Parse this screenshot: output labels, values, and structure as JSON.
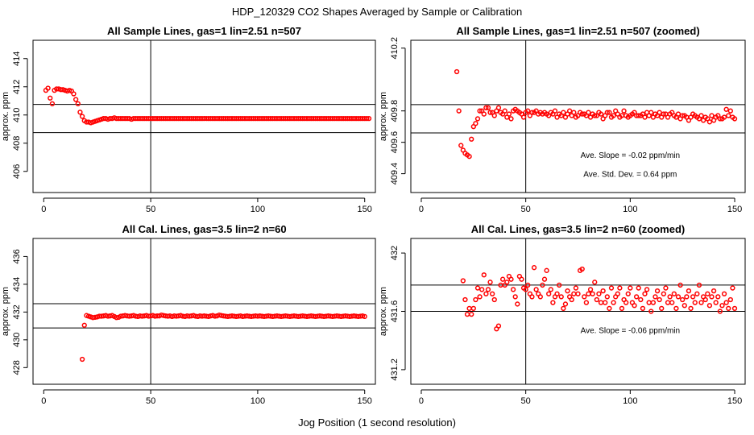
{
  "figure": {
    "title": "HDP_120329  CO2 Shapes Averaged by Sample or Calibration",
    "xlabel": "Jog Position (1 second resolution)"
  },
  "colors": {
    "points": "#ff0000",
    "axes": "#000000",
    "background": "#ffffff"
  },
  "chart_data": [
    {
      "type": "scatter",
      "title": "All Sample Lines, gas=1 lin=2.51 n=507",
      "ylabel": "approx. ppm",
      "xlim": [
        -5,
        155
      ],
      "ylim": [
        404.5,
        415.3
      ],
      "xticks": [
        0,
        50,
        100,
        150
      ],
      "yticks": [
        406,
        408,
        410,
        412,
        414
      ],
      "hlines": [
        410.75,
        408.75
      ],
      "vline": 50,
      "annotations": [],
      "series": [
        {
          "x_start": 1,
          "x_step": 1,
          "y": [
            411.75,
            411.9,
            411.2,
            410.8,
            411.75,
            411.85,
            411.85,
            411.8,
            411.8,
            411.75,
            411.7,
            411.75,
            411.7,
            411.5,
            411.1,
            410.8,
            410.2,
            409.9,
            409.6,
            409.5,
            409.5,
            409.45,
            409.5,
            409.55,
            409.6,
            409.65,
            409.7,
            409.75,
            409.75,
            409.7,
            409.75,
            409.75,
            409.8,
            409.75,
            409.75,
            409.75,
            409.75,
            409.75,
            409.75,
            409.75,
            409.7,
            409.75,
            409.75,
            409.75,
            409.75,
            409.75,
            409.75,
            409.75,
            409.75,
            409.75,
            409.75,
            409.75,
            409.75,
            409.75,
            409.75,
            409.75,
            409.75,
            409.75,
            409.75,
            409.75,
            409.75,
            409.75,
            409.75,
            409.75,
            409.75,
            409.75,
            409.75,
            409.75,
            409.75,
            409.75,
            409.75,
            409.75,
            409.75,
            409.75,
            409.75,
            409.75,
            409.75,
            409.75,
            409.75,
            409.75,
            409.75,
            409.75,
            409.75,
            409.75,
            409.75,
            409.75,
            409.75,
            409.75,
            409.75,
            409.75,
            409.75,
            409.75,
            409.75,
            409.75,
            409.75,
            409.75,
            409.75,
            409.75,
            409.75,
            409.75,
            409.75,
            409.75,
            409.75,
            409.75,
            409.75,
            409.75,
            409.75,
            409.75,
            409.75,
            409.75,
            409.75,
            409.75,
            409.75,
            409.75,
            409.75,
            409.75,
            409.75,
            409.75,
            409.75,
            409.75,
            409.75,
            409.75,
            409.75,
            409.75,
            409.75,
            409.75,
            409.75,
            409.75,
            409.75,
            409.75,
            409.75,
            409.75,
            409.75,
            409.75,
            409.75,
            409.75,
            409.75,
            409.75,
            409.75,
            409.75,
            409.75,
            409.75,
            409.75,
            409.75,
            409.75,
            409.75,
            409.75,
            409.75,
            409.75,
            409.75,
            409.75,
            409.75
          ]
        }
      ]
    },
    {
      "type": "scatter",
      "title": "All Sample Lines, gas=1 lin=2.51 n=507 (zoomed)",
      "ylabel": "approx. ppm",
      "xlim": [
        -5,
        155
      ],
      "ylim": [
        409.28,
        410.25
      ],
      "xticks": [
        0,
        50,
        100,
        150
      ],
      "yticks": [
        409.4,
        409.6,
        409.8,
        410.2
      ],
      "hlines": [
        409.84,
        409.66
      ],
      "vline": 50,
      "annotations": [
        {
          "text": "Ave. Slope =  -0.02  ppm/min",
          "x": 100,
          "y": 409.5
        },
        {
          "text": "Ave. Std. Dev. =  0.64  ppm",
          "x": 100,
          "y": 409.38
        }
      ],
      "series": [
        {
          "x_start": 17,
          "x_step": 1,
          "y": [
            410.05,
            409.8,
            409.58,
            409.55,
            409.53,
            409.52,
            409.51,
            409.62,
            409.7,
            409.72,
            409.75,
            409.8,
            409.8,
            409.78,
            409.82,
            409.82,
            409.79,
            409.79,
            409.77,
            409.8,
            409.82,
            409.79,
            409.78,
            409.8,
            409.76,
            409.78,
            409.75,
            409.8,
            409.81,
            409.8,
            409.79,
            409.78,
            409.76,
            409.79,
            409.8,
            409.77,
            409.79,
            409.79,
            409.8,
            409.78,
            409.79,
            409.78,
            409.79,
            409.78,
            409.77,
            409.79,
            409.78,
            409.8,
            409.76,
            409.78,
            409.77,
            409.79,
            409.76,
            409.78,
            409.8,
            409.77,
            409.79,
            409.76,
            409.77,
            409.79,
            409.78,
            409.78,
            409.77,
            409.79,
            409.76,
            409.78,
            409.77,
            409.77,
            409.79,
            409.78,
            409.75,
            409.77,
            409.79,
            409.79,
            409.76,
            409.77,
            409.8,
            409.78,
            409.76,
            409.77,
            409.8,
            409.77,
            409.76,
            409.77,
            409.78,
            409.79,
            409.77,
            409.77,
            409.77,
            409.78,
            409.76,
            409.79,
            409.77,
            409.79,
            409.76,
            409.78,
            409.77,
            409.79,
            409.76,
            409.78,
            409.78,
            409.76,
            409.78,
            409.79,
            409.77,
            409.76,
            409.78,
            409.75,
            409.77,
            409.77,
            409.76,
            409.74,
            409.76,
            409.78,
            409.77,
            409.76,
            409.75,
            409.77,
            409.74,
            409.76,
            409.75,
            409.73,
            409.77,
            409.74,
            409.76,
            409.77,
            409.75,
            409.75,
            409.76,
            409.81,
            409.77,
            409.8,
            409.76,
            409.75
          ]
        }
      ]
    },
    {
      "type": "scatter",
      "title": "All Cal. Lines, gas=3.5 lin=2 n=60",
      "ylabel": "approx. ppm",
      "xlim": [
        -5,
        155
      ],
      "ylim": [
        426.8,
        437.3
      ],
      "xticks": [
        0,
        50,
        100,
        150
      ],
      "yticks": [
        428,
        430,
        432,
        434,
        436
      ],
      "hlines": [
        432.6,
        430.85
      ],
      "vline": 50,
      "annotations": [],
      "series": [
        {
          "x_start": 18,
          "x_step": 1,
          "y": [
            428.6,
            431.05,
            431.75,
            431.7,
            431.65,
            431.6,
            431.62,
            431.65,
            431.7,
            431.7,
            431.72,
            431.75,
            431.7,
            431.72,
            431.75,
            431.68,
            431.6,
            431.62,
            431.7,
            431.72,
            431.75,
            431.72,
            431.7,
            431.72,
            431.75,
            431.7,
            431.68,
            431.72,
            431.7,
            431.72,
            431.75,
            431.7,
            431.72,
            431.75,
            431.7,
            431.72,
            431.72,
            431.78,
            431.75,
            431.72,
            431.7,
            431.72,
            431.68,
            431.72,
            431.7,
            431.72,
            431.75,
            431.7,
            431.68,
            431.72,
            431.7,
            431.72,
            431.75,
            431.7,
            431.68,
            431.72,
            431.7,
            431.72,
            431.7,
            431.68,
            431.72,
            431.75,
            431.7,
            431.72,
            431.78,
            431.75,
            431.72,
            431.7,
            431.68,
            431.7,
            431.72,
            431.7,
            431.68,
            431.7,
            431.72,
            431.68,
            431.7,
            431.72,
            431.7,
            431.68,
            431.7,
            431.72,
            431.7,
            431.72,
            431.7,
            431.68,
            431.7,
            431.72,
            431.7,
            431.68,
            431.7,
            431.72,
            431.7,
            431.68,
            431.7,
            431.72,
            431.7,
            431.68,
            431.7,
            431.72,
            431.7,
            431.68,
            431.7,
            431.72,
            431.7,
            431.68,
            431.7,
            431.72,
            431.7,
            431.68,
            431.7,
            431.72,
            431.7,
            431.68,
            431.7,
            431.72,
            431.7,
            431.68,
            431.7,
            431.72,
            431.7,
            431.68,
            431.7,
            431.72,
            431.7,
            431.68,
            431.7,
            431.72,
            431.7,
            431.68,
            431.7,
            431.72,
            431.68
          ]
        }
      ]
    },
    {
      "type": "scatter",
      "title": "All Cal. Lines, gas=3.5 lin=2 n=60 (zoomed)",
      "ylabel": "approx. ppm",
      "xlim": [
        -5,
        155
      ],
      "ylim": [
        431.1,
        432.1
      ],
      "xticks": [
        0,
        50,
        100,
        150
      ],
      "yticks": [
        431.2,
        431.6,
        432.0
      ],
      "hlines": [
        431.78,
        431.6
      ],
      "vline": 50,
      "annotations": [
        {
          "text": "Ave. Slope =  -0.06  ppm/min",
          "x": 100,
          "y": 431.45
        }
      ],
      "series": [
        {
          "x_start": 20,
          "x_step": 1,
          "y": [
            431.81,
            431.68,
            431.58,
            431.62,
            431.58,
            431.62,
            431.68,
            431.76,
            431.7,
            431.75,
            431.85,
            431.72,
            431.75,
            431.8,
            431.72,
            431.68,
            431.48,
            431.5,
            431.78,
            431.82,
            431.78,
            431.8,
            431.84,
            431.82,
            431.75,
            431.7,
            431.65,
            431.84,
            431.82,
            431.76,
            431.75,
            431.78,
            431.72,
            431.7,
            431.9,
            431.75,
            431.72,
            431.7,
            431.78,
            431.82,
            431.88,
            431.72,
            431.75,
            431.66,
            431.7,
            431.72,
            431.78,
            431.7,
            431.62,
            431.65,
            431.74,
            431.7,
            431.68,
            431.72,
            431.76,
            431.72,
            431.88,
            431.89,
            431.7,
            431.66,
            431.72,
            431.75,
            431.72,
            431.8,
            431.68,
            431.72,
            431.66,
            431.74,
            431.66,
            431.7,
            431.62,
            431.76,
            431.66,
            431.7,
            431.72,
            431.76,
            431.62,
            431.68,
            431.66,
            431.72,
            431.76,
            431.66,
            431.64,
            431.7,
            431.76,
            431.68,
            431.62,
            431.72,
            431.75,
            431.66,
            431.6,
            431.66,
            431.7,
            431.74,
            431.68,
            431.62,
            431.72,
            431.76,
            431.66,
            431.7,
            431.66,
            431.72,
            431.62,
            431.7,
            431.78,
            431.68,
            431.64,
            431.7,
            431.74,
            431.62,
            431.7,
            431.66,
            431.72,
            431.78,
            431.66,
            431.7,
            431.68,
            431.72,
            431.64,
            431.7,
            431.74,
            431.66,
            431.7,
            431.6,
            431.64,
            431.72,
            431.66,
            431.62,
            431.68,
            431.76,
            431.62
          ]
        }
      ]
    }
  ]
}
